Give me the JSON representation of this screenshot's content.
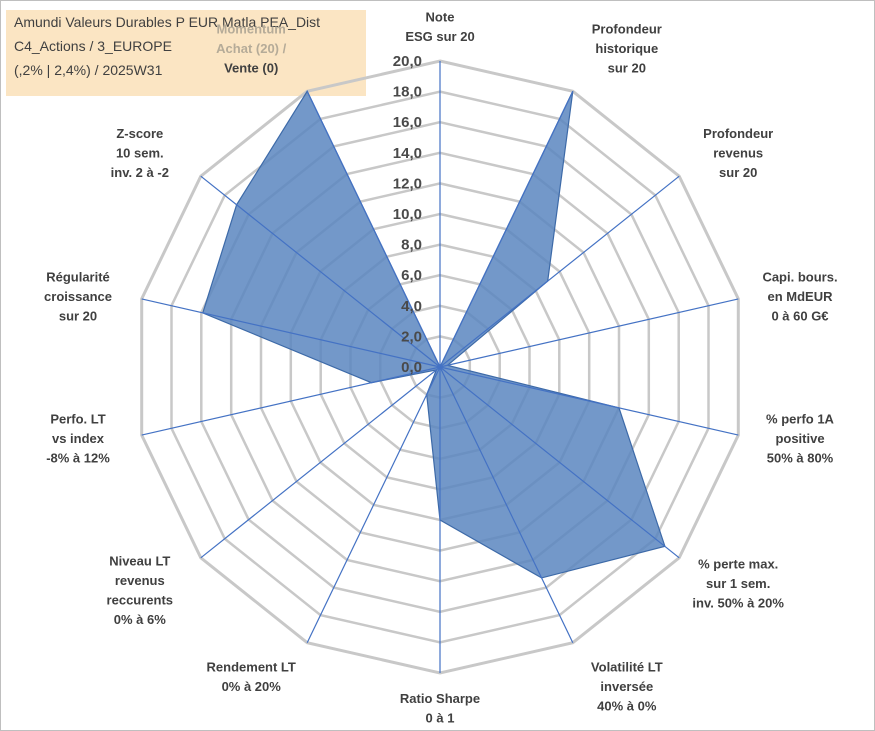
{
  "title": {
    "line1": "Amundi Valeurs Durables P EUR Matla PEA_Dist",
    "line2": "C4_Actions / 3_EUROPE",
    "line3": "(,2% | 2,4%) / 2025W31"
  },
  "chart_data": {
    "type": "radar",
    "rlim": [
      0,
      20
    ],
    "ticks": [
      "0,0",
      "2,0",
      "4,0",
      "6,0",
      "8,0",
      "10,0",
      "12,0",
      "14,0",
      "16,0",
      "18,0",
      "20,0"
    ],
    "grid_color": "#c8c8c8",
    "axis_color": "#4472c4",
    "fill_color": "#5b86bf",
    "axes": [
      {
        "lines": [
          "Note",
          "ESG sur 20"
        ],
        "value": 0
      },
      {
        "lines": [
          "Profondeur",
          "historique",
          "sur 20"
        ],
        "value": 20
      },
      {
        "lines": [
          "Profondeur",
          "revenus",
          "sur 20"
        ],
        "value": 9
      },
      {
        "lines": [
          "Capi. bours.",
          "en MdEUR",
          "0 à 60 G€"
        ],
        "value": 0.5
      },
      {
        "lines": [
          "% perfo 1A",
          "positive",
          "50% à 80%"
        ],
        "value": 12
      },
      {
        "lines": [
          "% perte max.",
          "sur 1 sem.",
          "inv. 50% à 20%"
        ],
        "value": 18.8
      },
      {
        "lines": [
          "Volatilité LT",
          "inversée",
          "40% à 0%"
        ],
        "value": 15.3
      },
      {
        "lines": [
          "Ratio Sharpe",
          "0 à 1"
        ],
        "value": 10
      },
      {
        "lines": [
          "Rendement LT",
          "0% à 20%"
        ],
        "value": 2
      },
      {
        "lines": [
          "Niveau LT",
          "revenus",
          "reccurents",
          "0% à 6%"
        ],
        "value": 0.3
      },
      {
        "lines": [
          "Perfo. LT",
          "vs index",
          "-8% à 12%"
        ],
        "value": 4.6
      },
      {
        "lines": [
          "Régularité",
          "croissance",
          "sur 20"
        ],
        "value": 15.9
      },
      {
        "lines": [
          "Z-score",
          "10 sem.",
          "inv. 2 à -2"
        ],
        "value": 17
      },
      {
        "lines": [
          "Momentum",
          "Achat (20) /",
          "Vente (0)"
        ],
        "value": 20
      }
    ]
  }
}
